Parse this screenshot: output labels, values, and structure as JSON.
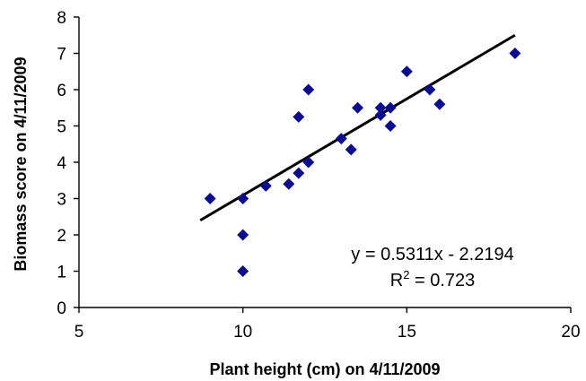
{
  "chart_data": {
    "type": "scatter",
    "title": "",
    "xlabel": "Plant height (cm) on 4/11/2009",
    "ylabel": "Biomass score on 4/11/2009",
    "xlim": [
      5,
      20
    ],
    "ylim": [
      0,
      8
    ],
    "x_ticks": [
      "5",
      "10",
      "15",
      "20"
    ],
    "y_ticks": [
      "0",
      "1",
      "2",
      "3",
      "4",
      "5",
      "6",
      "7",
      "8"
    ],
    "grid": false,
    "legend": "none",
    "marker": "diamond",
    "point_color": "#0b0c8c",
    "points": [
      {
        "x": 9.0,
        "y": 3.0
      },
      {
        "x": 10.0,
        "y": 3.0
      },
      {
        "x": 10.0,
        "y": 2.0
      },
      {
        "x": 10.0,
        "y": 1.0
      },
      {
        "x": 10.7,
        "y": 3.35
      },
      {
        "x": 11.4,
        "y": 3.4
      },
      {
        "x": 11.7,
        "y": 3.7
      },
      {
        "x": 11.7,
        "y": 5.25
      },
      {
        "x": 12.0,
        "y": 4.0
      },
      {
        "x": 12.0,
        "y": 6.0
      },
      {
        "x": 13.0,
        "y": 4.65
      },
      {
        "x": 13.3,
        "y": 4.35
      },
      {
        "x": 13.5,
        "y": 5.5
      },
      {
        "x": 14.2,
        "y": 5.3
      },
      {
        "x": 14.2,
        "y": 5.5
      },
      {
        "x": 14.5,
        "y": 5.5
      },
      {
        "x": 14.5,
        "y": 5.0
      },
      {
        "x": 15.0,
        "y": 6.5
      },
      {
        "x": 15.7,
        "y": 6.0
      },
      {
        "x": 16.0,
        "y": 5.6
      },
      {
        "x": 18.3,
        "y": 7.0
      }
    ],
    "trendline": {
      "type": "linear",
      "slope": 0.5311,
      "intercept": -2.2194,
      "x_range": [
        8.7,
        18.3
      ],
      "equation_text": "y = 0.5311x - 2.2194",
      "r2_prefix": "R",
      "r2_superscript": "2",
      "r2_value_text": " = 0.723"
    }
  }
}
